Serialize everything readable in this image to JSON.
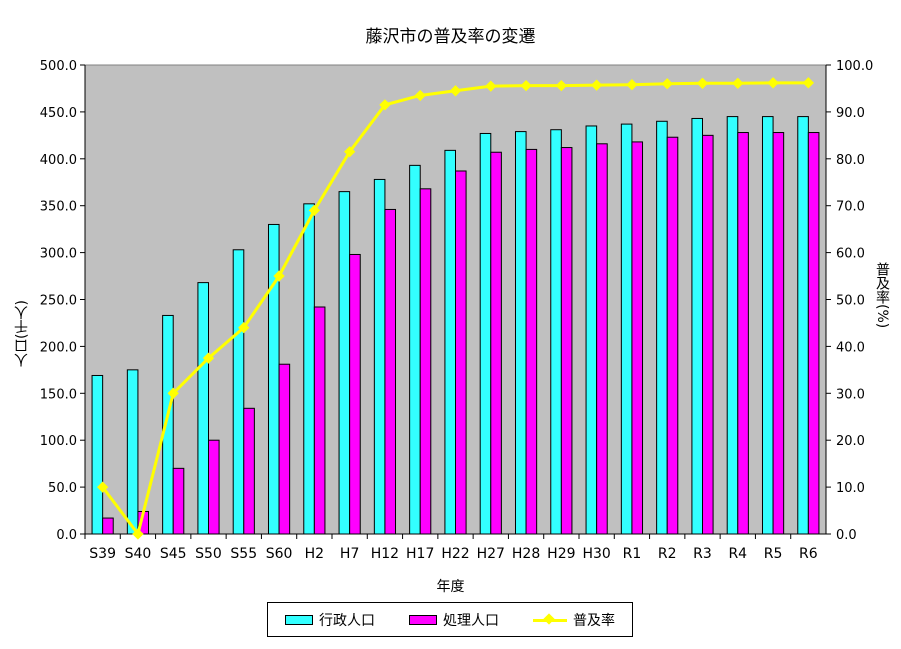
{
  "chart_data": {
    "type": "bar",
    "title": "藤沢市の普及率の変遷",
    "xlabel": "年度",
    "ylabel": "人口(千人)",
    "y2label": "普及率(%)",
    "categories": [
      "S39",
      "S40",
      "S45",
      "S50",
      "S55",
      "S60",
      "H2",
      "H7",
      "H12",
      "H17",
      "H22",
      "H27",
      "H28",
      "H29",
      "H30",
      "R1",
      "R2",
      "R3",
      "R4",
      "R5",
      "R6"
    ],
    "ylim": [
      0,
      500
    ],
    "yticks": [
      "0.0",
      "50.0",
      "100.0",
      "150.0",
      "200.0",
      "250.0",
      "300.0",
      "350.0",
      "400.0",
      "450.0",
      "500.0"
    ],
    "y2lim": [
      0,
      100
    ],
    "y2ticks": [
      "0.0",
      "10.0",
      "20.0",
      "30.0",
      "40.0",
      "50.0",
      "60.0",
      "70.0",
      "80.0",
      "90.0",
      "100.0"
    ],
    "grid": false,
    "legend_position": "bottom",
    "series": [
      {
        "name": "行政人口",
        "kind": "bar",
        "color": "#33ffff",
        "values": [
          169,
          175,
          233,
          268,
          303,
          330,
          352,
          365,
          378,
          393,
          409,
          427,
          429,
          431,
          435,
          437,
          440,
          443,
          445,
          445,
          445
        ]
      },
      {
        "name": "処理人口",
        "kind": "bar",
        "color": "#ff00ff",
        "values": [
          17,
          24,
          70,
          100,
          134,
          181,
          242,
          298,
          346,
          368,
          387,
          407,
          410,
          412,
          416,
          418,
          423,
          425,
          428,
          428,
          428
        ]
      },
      {
        "name": "普及率",
        "kind": "line",
        "axis": "right",
        "color": "#ffff00",
        "values": [
          10,
          0,
          30,
          37.5,
          44,
          55,
          69,
          81.5,
          91.5,
          93.5,
          94.5,
          95.5,
          95.6,
          95.6,
          95.7,
          95.8,
          96,
          96.1,
          96.1,
          96.2,
          96.2
        ]
      }
    ],
    "plot_background": "#c0c0c0"
  }
}
